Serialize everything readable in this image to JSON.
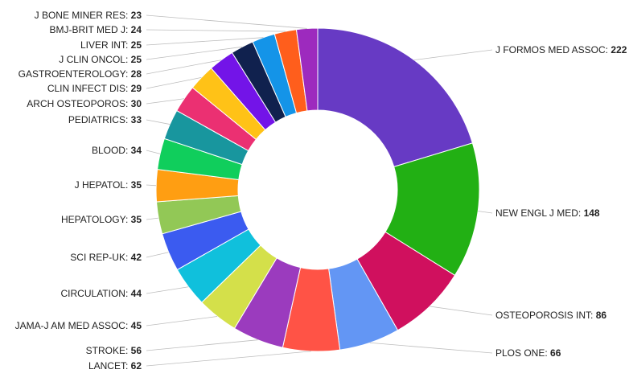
{
  "chart_data": {
    "type": "pie",
    "donut": true,
    "title": "",
    "legend": "none",
    "categories": [
      "J FORMOS MED ASSOC",
      "NEW ENGL J MED",
      "OSTEOPOROSIS INT",
      "PLOS ONE",
      "LANCET",
      "STROKE",
      "JAMA-J AM MED ASSOC",
      "CIRCULATION",
      "SCI REP-UK",
      "HEPATOLOGY",
      "J HEPATOL",
      "BLOOD",
      "PEDIATRICS",
      "ARCH OSTEOPOROS",
      "CLIN INFECT DIS",
      "GASTROENTEROLOGY",
      "J CLIN ONCOL",
      "LIVER INT",
      "BMJ-BRIT MED J",
      "J BONE MINER RES"
    ],
    "values": [
      222,
      148,
      86,
      66,
      62,
      56,
      45,
      44,
      42,
      35,
      35,
      34,
      33,
      30,
      29,
      28,
      25,
      25,
      24,
      23
    ],
    "colors": [
      "#673AC4",
      "#22B014",
      "#D0105E",
      "#6396F4",
      "#FF5346",
      "#9B3BBE",
      "#D4E04A",
      "#10C0DC",
      "#3B5BF0",
      "#92C856",
      "#FF9E12",
      "#10CE5C",
      "#18969E",
      "#EB3072",
      "#FFC217",
      "#7314E8",
      "#10214E",
      "#1494E8",
      "#FF5E1C",
      "#9D2ABE"
    ]
  }
}
